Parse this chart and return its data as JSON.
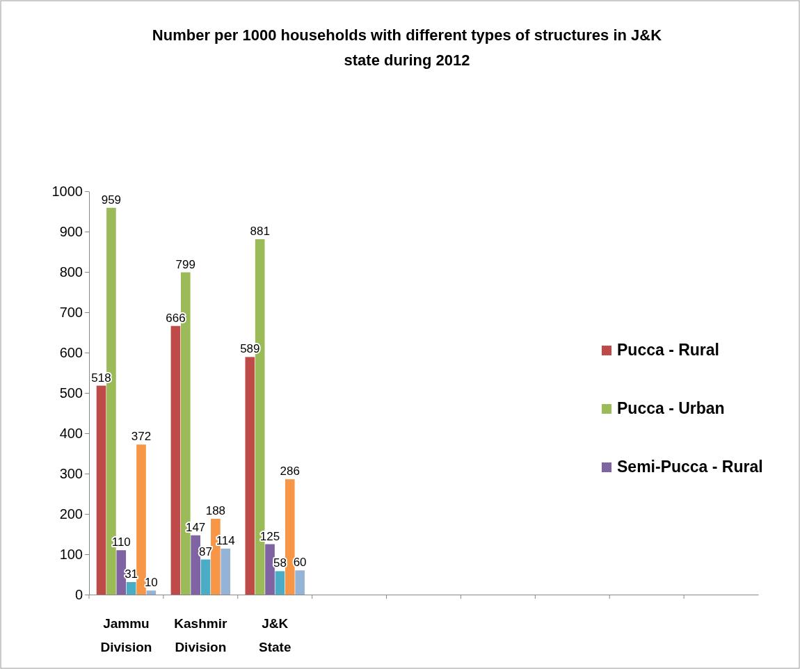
{
  "chart_data": {
    "type": "bar",
    "title": "Number per 1000 households with different types of structures in J&K state during 2012",
    "categories": [
      "Jammu Division",
      "Kashmir Division",
      "J&K State",
      null,
      null,
      null,
      null,
      null,
      null
    ],
    "series": [
      {
        "name": "Pucca - Rural",
        "color": "#be4b48",
        "values": [
          518,
          666,
          589,
          null,
          null,
          null,
          null,
          null,
          null
        ]
      },
      {
        "name": "Pucca - Urban",
        "color": "#9bbb59",
        "values": [
          959,
          799,
          881,
          null,
          null,
          null,
          null,
          null,
          null
        ]
      },
      {
        "name": "Semi-Pucca - Rural",
        "color": "#7f63a2",
        "values": [
          110,
          147,
          125,
          null,
          null,
          null,
          null,
          null,
          null
        ]
      },
      {
        "color": "#4bacc6",
        "values": [
          31,
          87,
          58,
          null,
          null,
          null,
          null,
          null,
          null
        ]
      },
      {
        "color": "#f79646",
        "values": [
          372,
          188,
          286,
          null,
          null,
          null,
          null,
          null,
          null
        ]
      },
      {
        "color": "#95b3d7",
        "values": [
          10,
          114,
          60,
          null,
          null,
          null,
          null,
          null,
          null
        ]
      }
    ],
    "ylim": [
      0,
      1000
    ],
    "yticks": [
      0,
      100,
      200,
      300,
      400,
      500,
      600,
      700,
      800,
      900,
      1000
    ],
    "data_labels": true,
    "legend": "right",
    "grid": false
  }
}
